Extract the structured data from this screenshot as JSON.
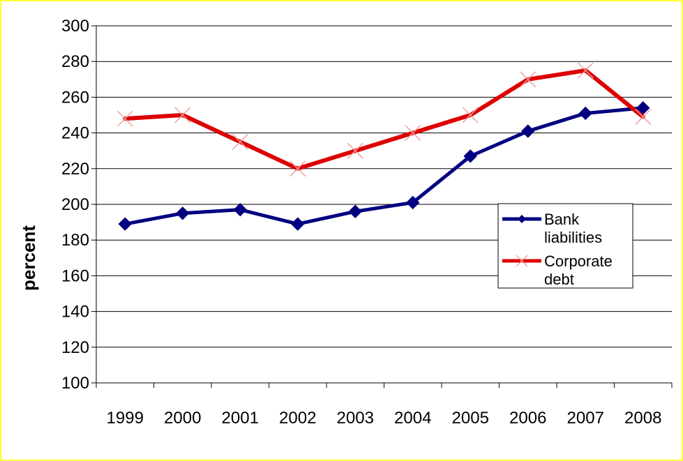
{
  "chart_data": {
    "type": "line",
    "title": "",
    "xlabel": "",
    "ylabel": "percent",
    "ylim": [
      100,
      300
    ],
    "ytick_step": 20,
    "grid": "horizontal",
    "categories": [
      "1999",
      "2000",
      "2001",
      "2002",
      "2003",
      "2004",
      "2005",
      "2006",
      "2007",
      "2008"
    ],
    "series": [
      {
        "name": "Bank liabilities",
        "legend_lines": [
          "Bank",
          "liabilities"
        ],
        "color": "#000080",
        "marker": "diamond",
        "values": [
          189,
          195,
          197,
          189,
          196,
          201,
          227,
          241,
          251,
          254
        ]
      },
      {
        "name": "Corporate debt",
        "legend_lines": [
          "Corporate",
          "debt"
        ],
        "color": "#dd0000",
        "marker": "x",
        "values": [
          248,
          250,
          235,
          220,
          230,
          240,
          250,
          270,
          275,
          249
        ]
      }
    ],
    "legend_position": "right-middle"
  }
}
